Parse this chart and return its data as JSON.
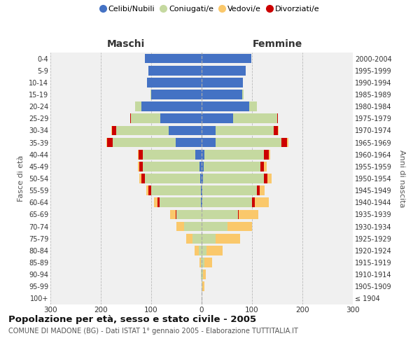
{
  "age_groups": [
    "100+",
    "95-99",
    "90-94",
    "85-89",
    "80-84",
    "75-79",
    "70-74",
    "65-69",
    "60-64",
    "55-59",
    "50-54",
    "45-49",
    "40-44",
    "35-39",
    "30-34",
    "25-29",
    "20-24",
    "15-19",
    "10-14",
    "5-9",
    "0-4"
  ],
  "birth_years": [
    "≤ 1904",
    "1905-1909",
    "1910-1914",
    "1915-1919",
    "1920-1924",
    "1925-1929",
    "1930-1934",
    "1935-1939",
    "1940-1944",
    "1945-1949",
    "1950-1954",
    "1955-1959",
    "1960-1964",
    "1965-1969",
    "1970-1974",
    "1975-1979",
    "1980-1984",
    "1985-1989",
    "1990-1994",
    "1995-1999",
    "2000-2004"
  ],
  "males": {
    "celibi": [
      0,
      0,
      0,
      0,
      0,
      0,
      0,
      0,
      2,
      2,
      3,
      4,
      12,
      52,
      65,
      82,
      120,
      100,
      108,
      105,
      112
    ],
    "coniugati": [
      0,
      0,
      1,
      2,
      6,
      18,
      35,
      50,
      82,
      98,
      110,
      112,
      105,
      125,
      105,
      58,
      12,
      2,
      0,
      0,
      0
    ],
    "vedovi": [
      0,
      0,
      1,
      2,
      8,
      12,
      15,
      10,
      8,
      4,
      4,
      3,
      2,
      2,
      1,
      0,
      0,
      0,
      0,
      0,
      0
    ],
    "divorziati": [
      0,
      0,
      0,
      0,
      0,
      0,
      0,
      2,
      3,
      6,
      6,
      8,
      8,
      10,
      8,
      2,
      0,
      0,
      0,
      0,
      0
    ]
  },
  "females": {
    "nubili": [
      0,
      0,
      0,
      0,
      0,
      0,
      0,
      0,
      2,
      2,
      3,
      4,
      5,
      28,
      28,
      62,
      95,
      80,
      82,
      88,
      98
    ],
    "coniugate": [
      0,
      2,
      3,
      5,
      10,
      28,
      52,
      72,
      98,
      108,
      120,
      112,
      118,
      130,
      115,
      88,
      15,
      4,
      0,
      0,
      0
    ],
    "vedove": [
      0,
      4,
      6,
      16,
      32,
      48,
      48,
      38,
      28,
      10,
      8,
      5,
      3,
      2,
      2,
      0,
      0,
      0,
      0,
      0,
      0
    ],
    "divorziate": [
      0,
      0,
      0,
      0,
      0,
      0,
      0,
      2,
      5,
      5,
      8,
      8,
      10,
      12,
      8,
      2,
      0,
      0,
      0,
      0,
      0
    ]
  },
  "colors": {
    "celibi": "#4472C4",
    "coniugati": "#C5D9A0",
    "vedovi": "#FAC86B",
    "divorziati": "#CC0000"
  },
  "title": "Popolazione per età, sesso e stato civile - 2005",
  "subtitle": "COMUNE DI MADONE (BG) - Dati ISTAT 1° gennaio 2005 - Elaborazione TUTTITALIA.IT",
  "xlabel_left": "Maschi",
  "xlabel_right": "Femmine",
  "ylabel_left": "Fasce di età",
  "ylabel_right": "Anni di nascita",
  "xlim": 300,
  "legend_labels": [
    "Celibi/Nubili",
    "Coniugati/e",
    "Vedovi/e",
    "Divorziati/e"
  ],
  "bg_color": "#f0f0f0"
}
